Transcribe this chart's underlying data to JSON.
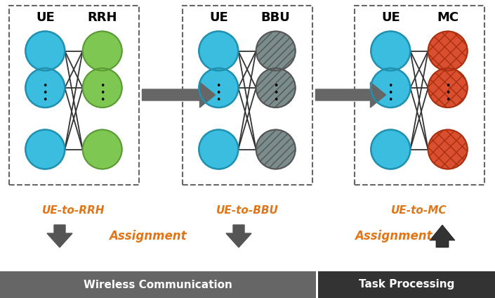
{
  "bg_color": "#ffffff",
  "blue_color": "#3bbde0",
  "green_color": "#7dc752",
  "gray_color": "#7a8c8c",
  "red_color": "#d94f30",
  "orange_color": "#e07618",
  "dark_arrow_color": "#555555",
  "panels": [
    {
      "label_left": "UE",
      "label_right": "RRH",
      "left_color": "#3bbde0",
      "right_color": "#7dc752",
      "right_hatch": "#",
      "right_edge": "#5a9a35"
    },
    {
      "label_left": "UE",
      "label_right": "BBU",
      "left_color": "#3bbde0",
      "right_color": "#7a8c8c",
      "right_hatch": "///",
      "right_edge": "#555555"
    },
    {
      "label_left": "UE",
      "label_right": "MC",
      "left_color": "#3bbde0",
      "right_color": "#d94f30",
      "right_hatch": "xx",
      "right_edge": "#aa3010"
    }
  ],
  "labels_below": [
    "UE-to-RRH",
    "UE-to-BBU",
    "UE-to-MC"
  ],
  "bottom_bar1_label": "Wireless Communication",
  "bottom_bar2_label": "Task Processing",
  "assignment_left_label": "Assignment",
  "assignment_right_label": "Assignment"
}
